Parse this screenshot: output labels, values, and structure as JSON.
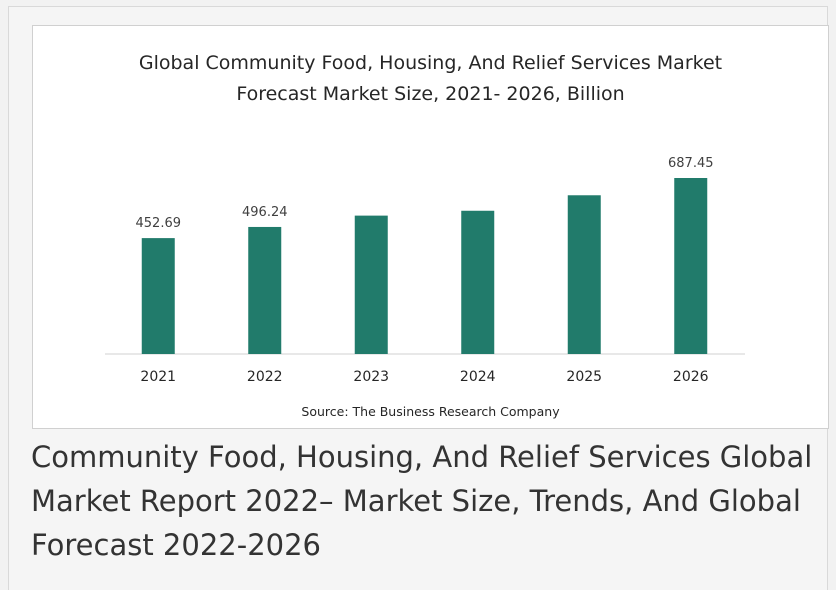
{
  "chart_data": {
    "type": "bar",
    "title_lines": [
      "Global Community Food, Housing, And Relief Services Market",
      "Forecast Market Size, 2021- 2026, Billion"
    ],
    "categories": [
      "2021",
      "2022",
      "2023",
      "2024",
      "2025",
      "2026"
    ],
    "values": [
      452.69,
      496.24,
      540.5,
      559.5,
      620.0,
      687.45
    ],
    "data_labels": [
      "452.69",
      "496.24",
      "",
      "",
      "",
      "687.45"
    ],
    "xlabel": "",
    "ylabel": "",
    "ylim": [
      0,
      687.45
    ],
    "bar_color": "#217b6b",
    "grid": false,
    "legend": "none",
    "source": "Source: The Business Research Company"
  },
  "report_title": "Community Food, Housing, And Relief Services Global Market Report 2022– Market Size, Trends, And Global Forecast 2022-2026"
}
